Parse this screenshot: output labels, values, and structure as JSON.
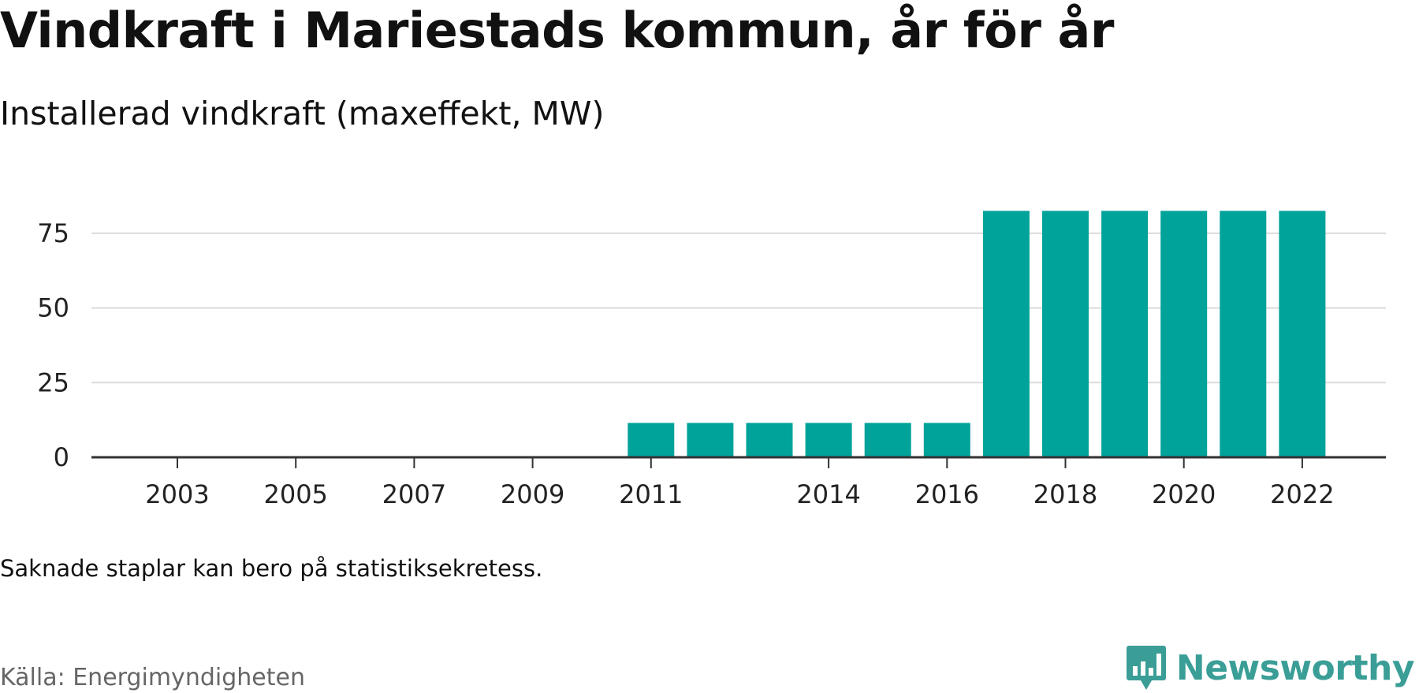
{
  "chart_data": {
    "type": "bar",
    "title": "Vindkraft i Mariestads kommun, år för år",
    "subtitle": "Installerad vindkraft (maxeffekt, MW)",
    "categories": [
      2003,
      2004,
      2005,
      2006,
      2007,
      2008,
      2009,
      2010,
      2011,
      2012,
      2013,
      2014,
      2015,
      2016,
      2017,
      2018,
      2019,
      2020,
      2021,
      2022
    ],
    "values": [
      null,
      null,
      null,
      null,
      null,
      null,
      null,
      null,
      11.5,
      11.5,
      11.5,
      11.5,
      11.5,
      11.5,
      82.5,
      82.5,
      82.5,
      82.5,
      82.5,
      82.5
    ],
    "x_tick_labels": [
      "2003",
      "2005",
      "2007",
      "2009",
      "2011",
      "2014",
      "2016",
      "2018",
      "2020",
      "2022"
    ],
    "y_ticks": [
      0,
      25,
      50,
      75
    ],
    "ylim": [
      0,
      85
    ],
    "grid": true,
    "bar_color": "#00a39a",
    "note": "Saknade staplar kan bero på statistiksekretess.",
    "source": "Källa: Energimyndigheten"
  },
  "brand": {
    "name": "Newsworthy",
    "icon": "newsworthy-logo-icon",
    "color": "#3a9e97"
  }
}
